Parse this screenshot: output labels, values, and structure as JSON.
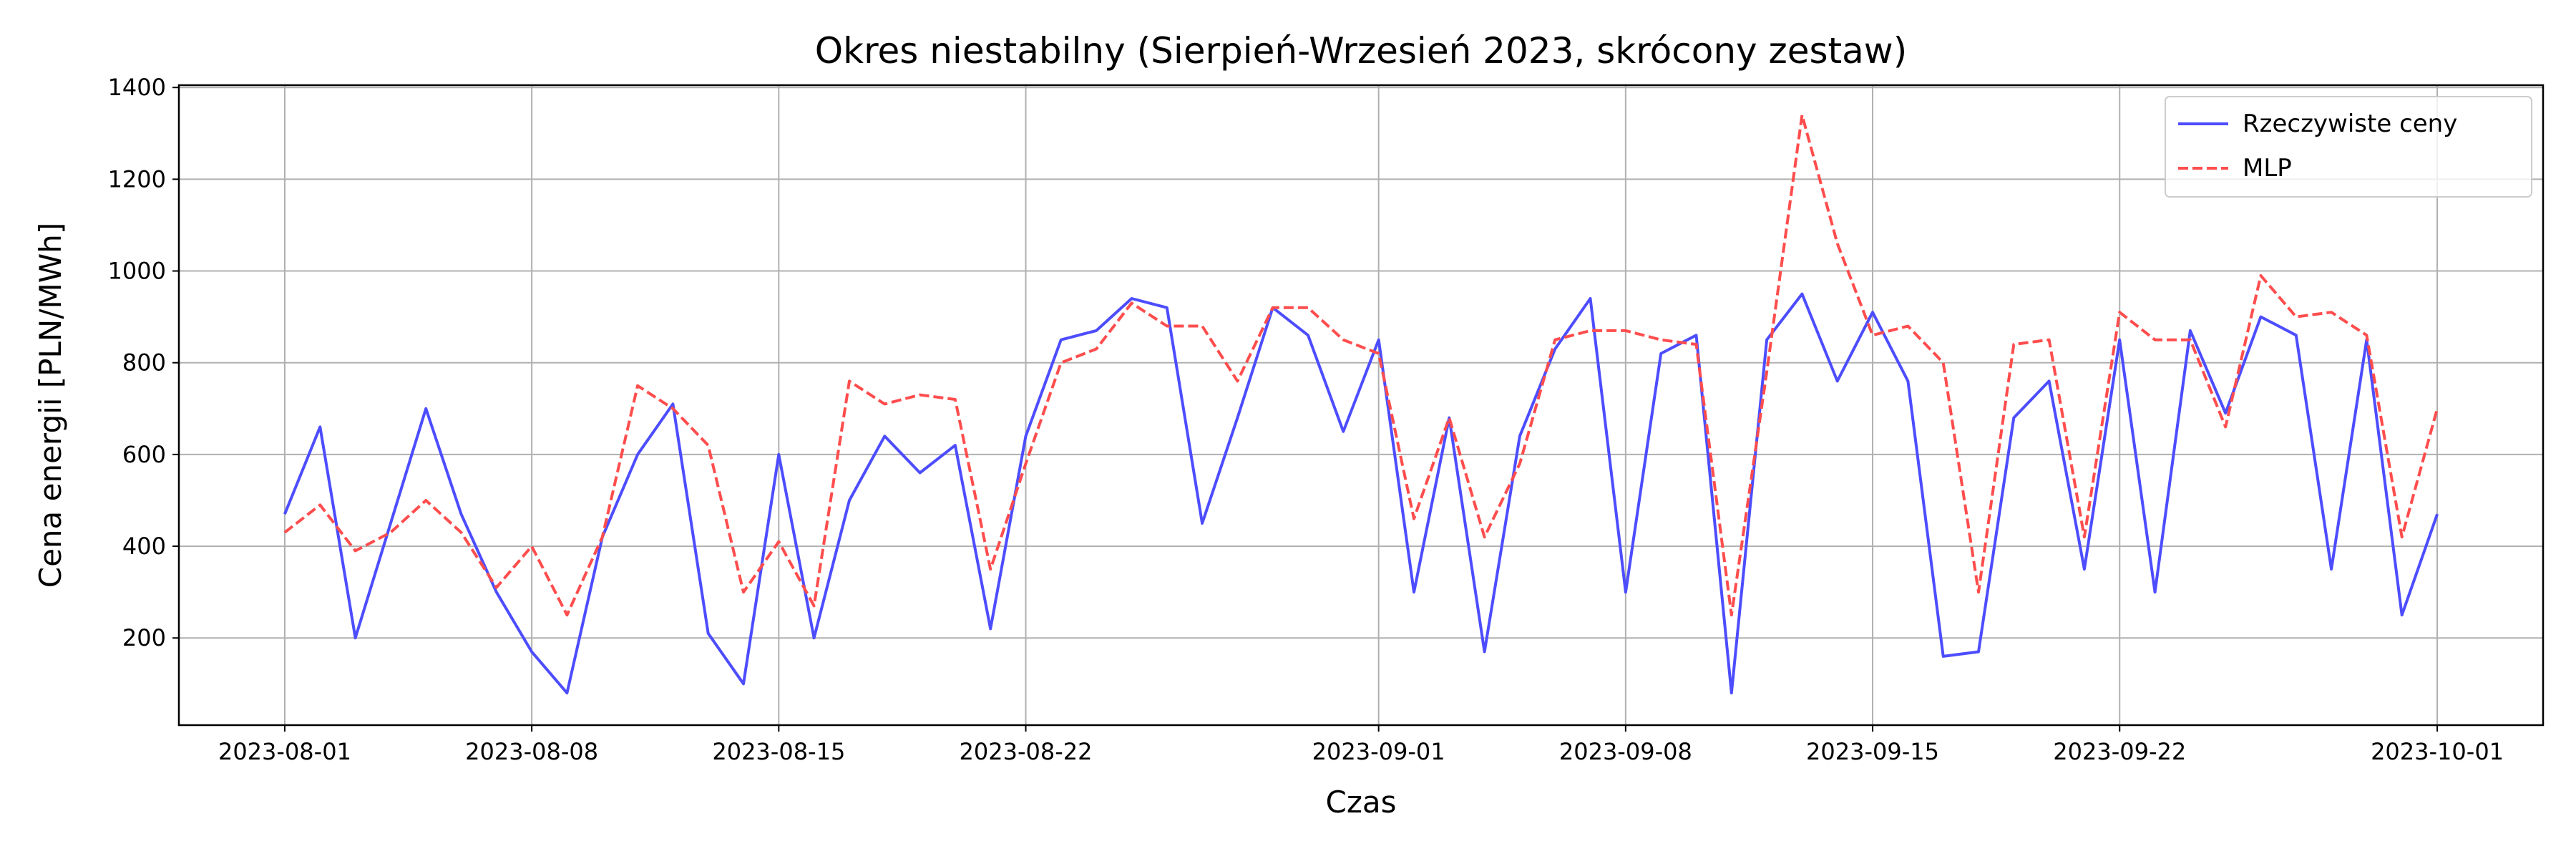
{
  "chart_data": {
    "type": "line",
    "title": "Okres niestabilny (Sierpień-Wrzesień 2023, skrócony zestaw)",
    "xlabel": "Czas",
    "ylabel": "Cena energii [PLN/MWh]",
    "x": [
      "2023-08-01",
      "2023-08-02",
      "2023-08-03",
      "2023-08-04",
      "2023-08-05",
      "2023-08-06",
      "2023-08-07",
      "2023-08-08",
      "2023-08-09",
      "2023-08-10",
      "2023-08-11",
      "2023-08-12",
      "2023-08-13",
      "2023-08-14",
      "2023-08-15",
      "2023-08-16",
      "2023-08-17",
      "2023-08-18",
      "2023-08-19",
      "2023-08-20",
      "2023-08-21",
      "2023-08-22",
      "2023-08-23",
      "2023-08-24",
      "2023-08-25",
      "2023-08-26",
      "2023-08-27",
      "2023-08-28",
      "2023-08-29",
      "2023-08-30",
      "2023-08-31",
      "2023-09-01",
      "2023-09-02",
      "2023-09-03",
      "2023-09-04",
      "2023-09-05",
      "2023-09-06",
      "2023-09-07",
      "2023-09-08",
      "2023-09-09",
      "2023-09-10",
      "2023-09-11",
      "2023-09-12",
      "2023-09-13",
      "2023-09-14",
      "2023-09-15",
      "2023-09-16",
      "2023-09-17",
      "2023-09-18",
      "2023-09-19",
      "2023-09-20",
      "2023-09-21",
      "2023-09-22",
      "2023-09-23",
      "2023-09-24",
      "2023-09-25",
      "2023-09-26",
      "2023-09-27",
      "2023-09-28",
      "2023-09-29",
      "2023-09-30",
      "2023-10-01"
    ],
    "series": [
      {
        "name": "Rzeczywiste ceny",
        "color": "#4d4dff",
        "linestyle": "solid",
        "values": [
          470,
          660,
          200,
          450,
          700,
          470,
          300,
          170,
          80,
          420,
          600,
          710,
          210,
          100,
          600,
          200,
          500,
          640,
          560,
          620,
          220,
          640,
          850,
          870,
          940,
          920,
          450,
          680,
          920,
          860,
          650,
          850,
          300,
          680,
          170,
          640,
          830,
          940,
          300,
          820,
          860,
          80,
          850,
          950,
          760,
          910,
          760,
          160,
          170,
          680,
          760,
          350,
          850,
          300,
          870,
          690,
          900,
          860,
          350,
          850,
          250,
          470
        ]
      },
      {
        "name": "MLP",
        "color": "#ff4d4d",
        "linestyle": "dashed",
        "values": [
          430,
          490,
          390,
          430,
          500,
          430,
          310,
          400,
          250,
          420,
          750,
          700,
          620,
          300,
          410,
          270,
          760,
          710,
          730,
          720,
          350,
          580,
          800,
          830,
          930,
          880,
          880,
          760,
          920,
          920,
          850,
          820,
          460,
          680,
          420,
          580,
          850,
          870,
          870,
          850,
          840,
          250,
          780,
          1340,
          1060,
          860,
          880,
          800,
          300,
          840,
          850,
          420,
          910,
          850,
          850,
          660,
          990,
          900,
          910,
          860,
          420,
          700
        ]
      }
    ],
    "xlim": [
      "2023-07-29",
      "2023-10-04"
    ],
    "xticks": [
      "2023-08-01",
      "2023-08-08",
      "2023-08-15",
      "2023-08-22",
      "2023-09-01",
      "2023-09-08",
      "2023-09-15",
      "2023-09-22",
      "2023-10-01"
    ],
    "ylim": [
      10,
      1405
    ],
    "yticks": [
      200,
      400,
      600,
      800,
      1000,
      1200,
      1400
    ],
    "grid": true,
    "legend": "upper right"
  }
}
